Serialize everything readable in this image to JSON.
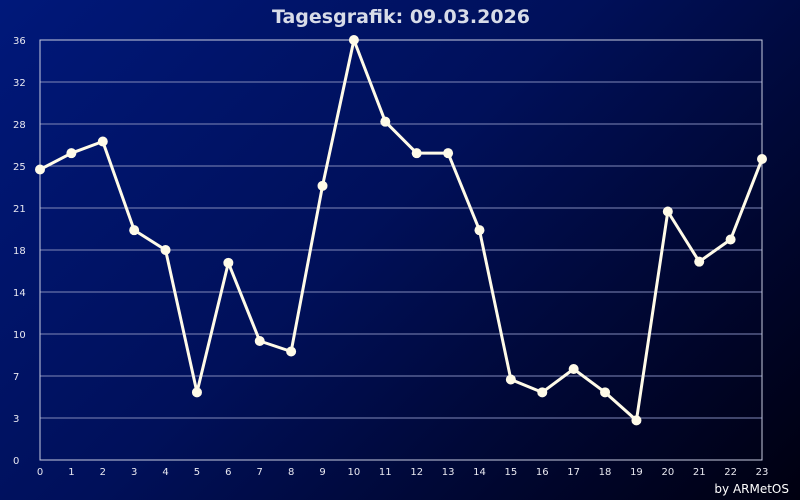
{
  "page": {
    "credit": "by ARMetOS"
  },
  "chart_data": {
    "type": "line",
    "title": "Tagesgrafik: 09.03.2026",
    "xlabel": "",
    "ylabel": "",
    "x": [
      0,
      1,
      2,
      3,
      4,
      5,
      6,
      7,
      8,
      9,
      10,
      11,
      12,
      13,
      14,
      15,
      16,
      17,
      18,
      19,
      20,
      21,
      22,
      23
    ],
    "series": [
      {
        "values": [
          24.9,
          26.3,
          27.3,
          19.7,
          18.0,
          5.8,
          16.9,
          10.2,
          9.3,
          23.5,
          36.0,
          29.0,
          26.3,
          26.3,
          19.7,
          6.9,
          5.8,
          7.8,
          5.8,
          3.4,
          21.3,
          17.0,
          18.9,
          25.8
        ]
      }
    ],
    "y_ticks": [
      "0",
      "3",
      "7",
      "10",
      "14",
      "18",
      "21",
      "25",
      "28",
      "32",
      "36"
    ],
    "x_ticks": [
      "0",
      "1",
      "2",
      "3",
      "4",
      "5",
      "6",
      "7",
      "8",
      "9",
      "10",
      "11",
      "12",
      "13",
      "14",
      "15",
      "16",
      "17",
      "18",
      "19",
      "20",
      "21",
      "22",
      "23"
    ],
    "xlim": [
      0,
      23
    ],
    "ylim": [
      0,
      36
    ],
    "grid": true,
    "line_color": "#fffbe8",
    "background_color": "#00105a"
  }
}
